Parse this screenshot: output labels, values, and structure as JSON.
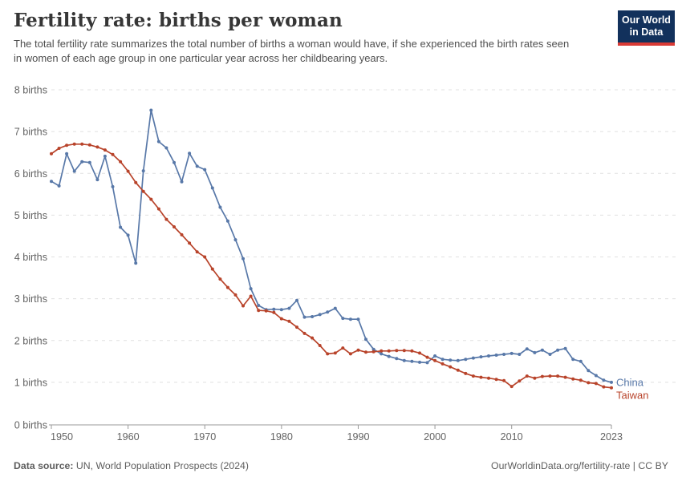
{
  "header": {
    "title": "Fertility rate: births per woman",
    "subtitle": "The total fertility rate summarizes the total number of births a woman would have, if she experienced the birth rates seen in women of each age group in one particular year across her childbearing years.",
    "logo": {
      "line1": "Our World",
      "line2": "in Data"
    }
  },
  "footer": {
    "source_label": "Data source:",
    "source_text": " UN, World Population Prospects (2024)",
    "link_text": "OurWorldinData.org/fertility-rate | CC BY"
  },
  "colors": {
    "china": "#5878a8",
    "taiwan": "#b8432a",
    "grid": "#e0e0e0",
    "axis": "#999999",
    "tick_label": "#636363",
    "logo_bg": "#12315c",
    "logo_accent": "#d93a35"
  },
  "chart_data": {
    "type": "line",
    "title": "Fertility rate: births per woman",
    "xlabel": "",
    "ylabel": "births per woman",
    "ylim": [
      0,
      8
    ],
    "yticks": [
      0,
      1,
      2,
      3,
      4,
      5,
      6,
      7,
      8
    ],
    "ytick_format": "{v} births",
    "xticks": [
      1950,
      1960,
      1970,
      1980,
      1990,
      2000,
      2010,
      2023
    ],
    "grid": "dashed-horizontal",
    "legend_position": "end-of-line-labels",
    "markers": "point-per-year",
    "x": [
      1950,
      1951,
      1952,
      1953,
      1954,
      1955,
      1956,
      1957,
      1958,
      1959,
      1960,
      1961,
      1962,
      1963,
      1964,
      1965,
      1966,
      1967,
      1968,
      1969,
      1970,
      1971,
      1972,
      1973,
      1974,
      1975,
      1976,
      1977,
      1978,
      1979,
      1980,
      1981,
      1982,
      1983,
      1984,
      1985,
      1986,
      1987,
      1988,
      1989,
      1990,
      1991,
      1992,
      1993,
      1994,
      1995,
      1996,
      1997,
      1998,
      1999,
      2000,
      2001,
      2002,
      2003,
      2004,
      2005,
      2006,
      2007,
      2008,
      2009,
      2010,
      2011,
      2012,
      2013,
      2014,
      2015,
      2016,
      2017,
      2018,
      2019,
      2020,
      2021,
      2022,
      2023
    ],
    "series": [
      {
        "name": "China",
        "color": "#5878a8",
        "values": [
          5.81,
          5.7,
          6.47,
          6.05,
          6.28,
          6.26,
          5.85,
          6.41,
          5.68,
          4.71,
          4.52,
          3.85,
          6.06,
          7.51,
          6.76,
          6.61,
          6.26,
          5.8,
          6.48,
          6.17,
          6.09,
          5.65,
          5.19,
          4.86,
          4.41,
          3.96,
          3.24,
          2.84,
          2.74,
          2.75,
          2.74,
          2.77,
          2.96,
          2.56,
          2.57,
          2.62,
          2.68,
          2.77,
          2.53,
          2.51,
          2.51,
          2.03,
          1.79,
          1.68,
          1.62,
          1.57,
          1.52,
          1.5,
          1.48,
          1.47,
          1.63,
          1.55,
          1.53,
          1.52,
          1.55,
          1.58,
          1.61,
          1.63,
          1.65,
          1.67,
          1.69,
          1.67,
          1.8,
          1.71,
          1.77,
          1.67,
          1.77,
          1.81,
          1.55,
          1.5,
          1.28,
          1.16,
          1.05,
          1.0
        ]
      },
      {
        "name": "Taiwan",
        "color": "#b8432a",
        "values": [
          6.47,
          6.6,
          6.67,
          6.7,
          6.7,
          6.68,
          6.63,
          6.56,
          6.45,
          6.28,
          6.05,
          5.78,
          5.57,
          5.38,
          5.15,
          4.9,
          4.72,
          4.53,
          4.33,
          4.12,
          4.0,
          3.71,
          3.47,
          3.27,
          3.09,
          2.83,
          3.06,
          2.72,
          2.71,
          2.67,
          2.52,
          2.46,
          2.32,
          2.17,
          2.06,
          1.88,
          1.68,
          1.7,
          1.82,
          1.68,
          1.77,
          1.72,
          1.73,
          1.75,
          1.75,
          1.76,
          1.76,
          1.75,
          1.7,
          1.6,
          1.52,
          1.44,
          1.37,
          1.29,
          1.21,
          1.15,
          1.12,
          1.1,
          1.07,
          1.04,
          0.9,
          1.03,
          1.15,
          1.1,
          1.14,
          1.15,
          1.15,
          1.12,
          1.08,
          1.05,
          0.99,
          0.97,
          0.89,
          0.87
        ]
      }
    ]
  }
}
